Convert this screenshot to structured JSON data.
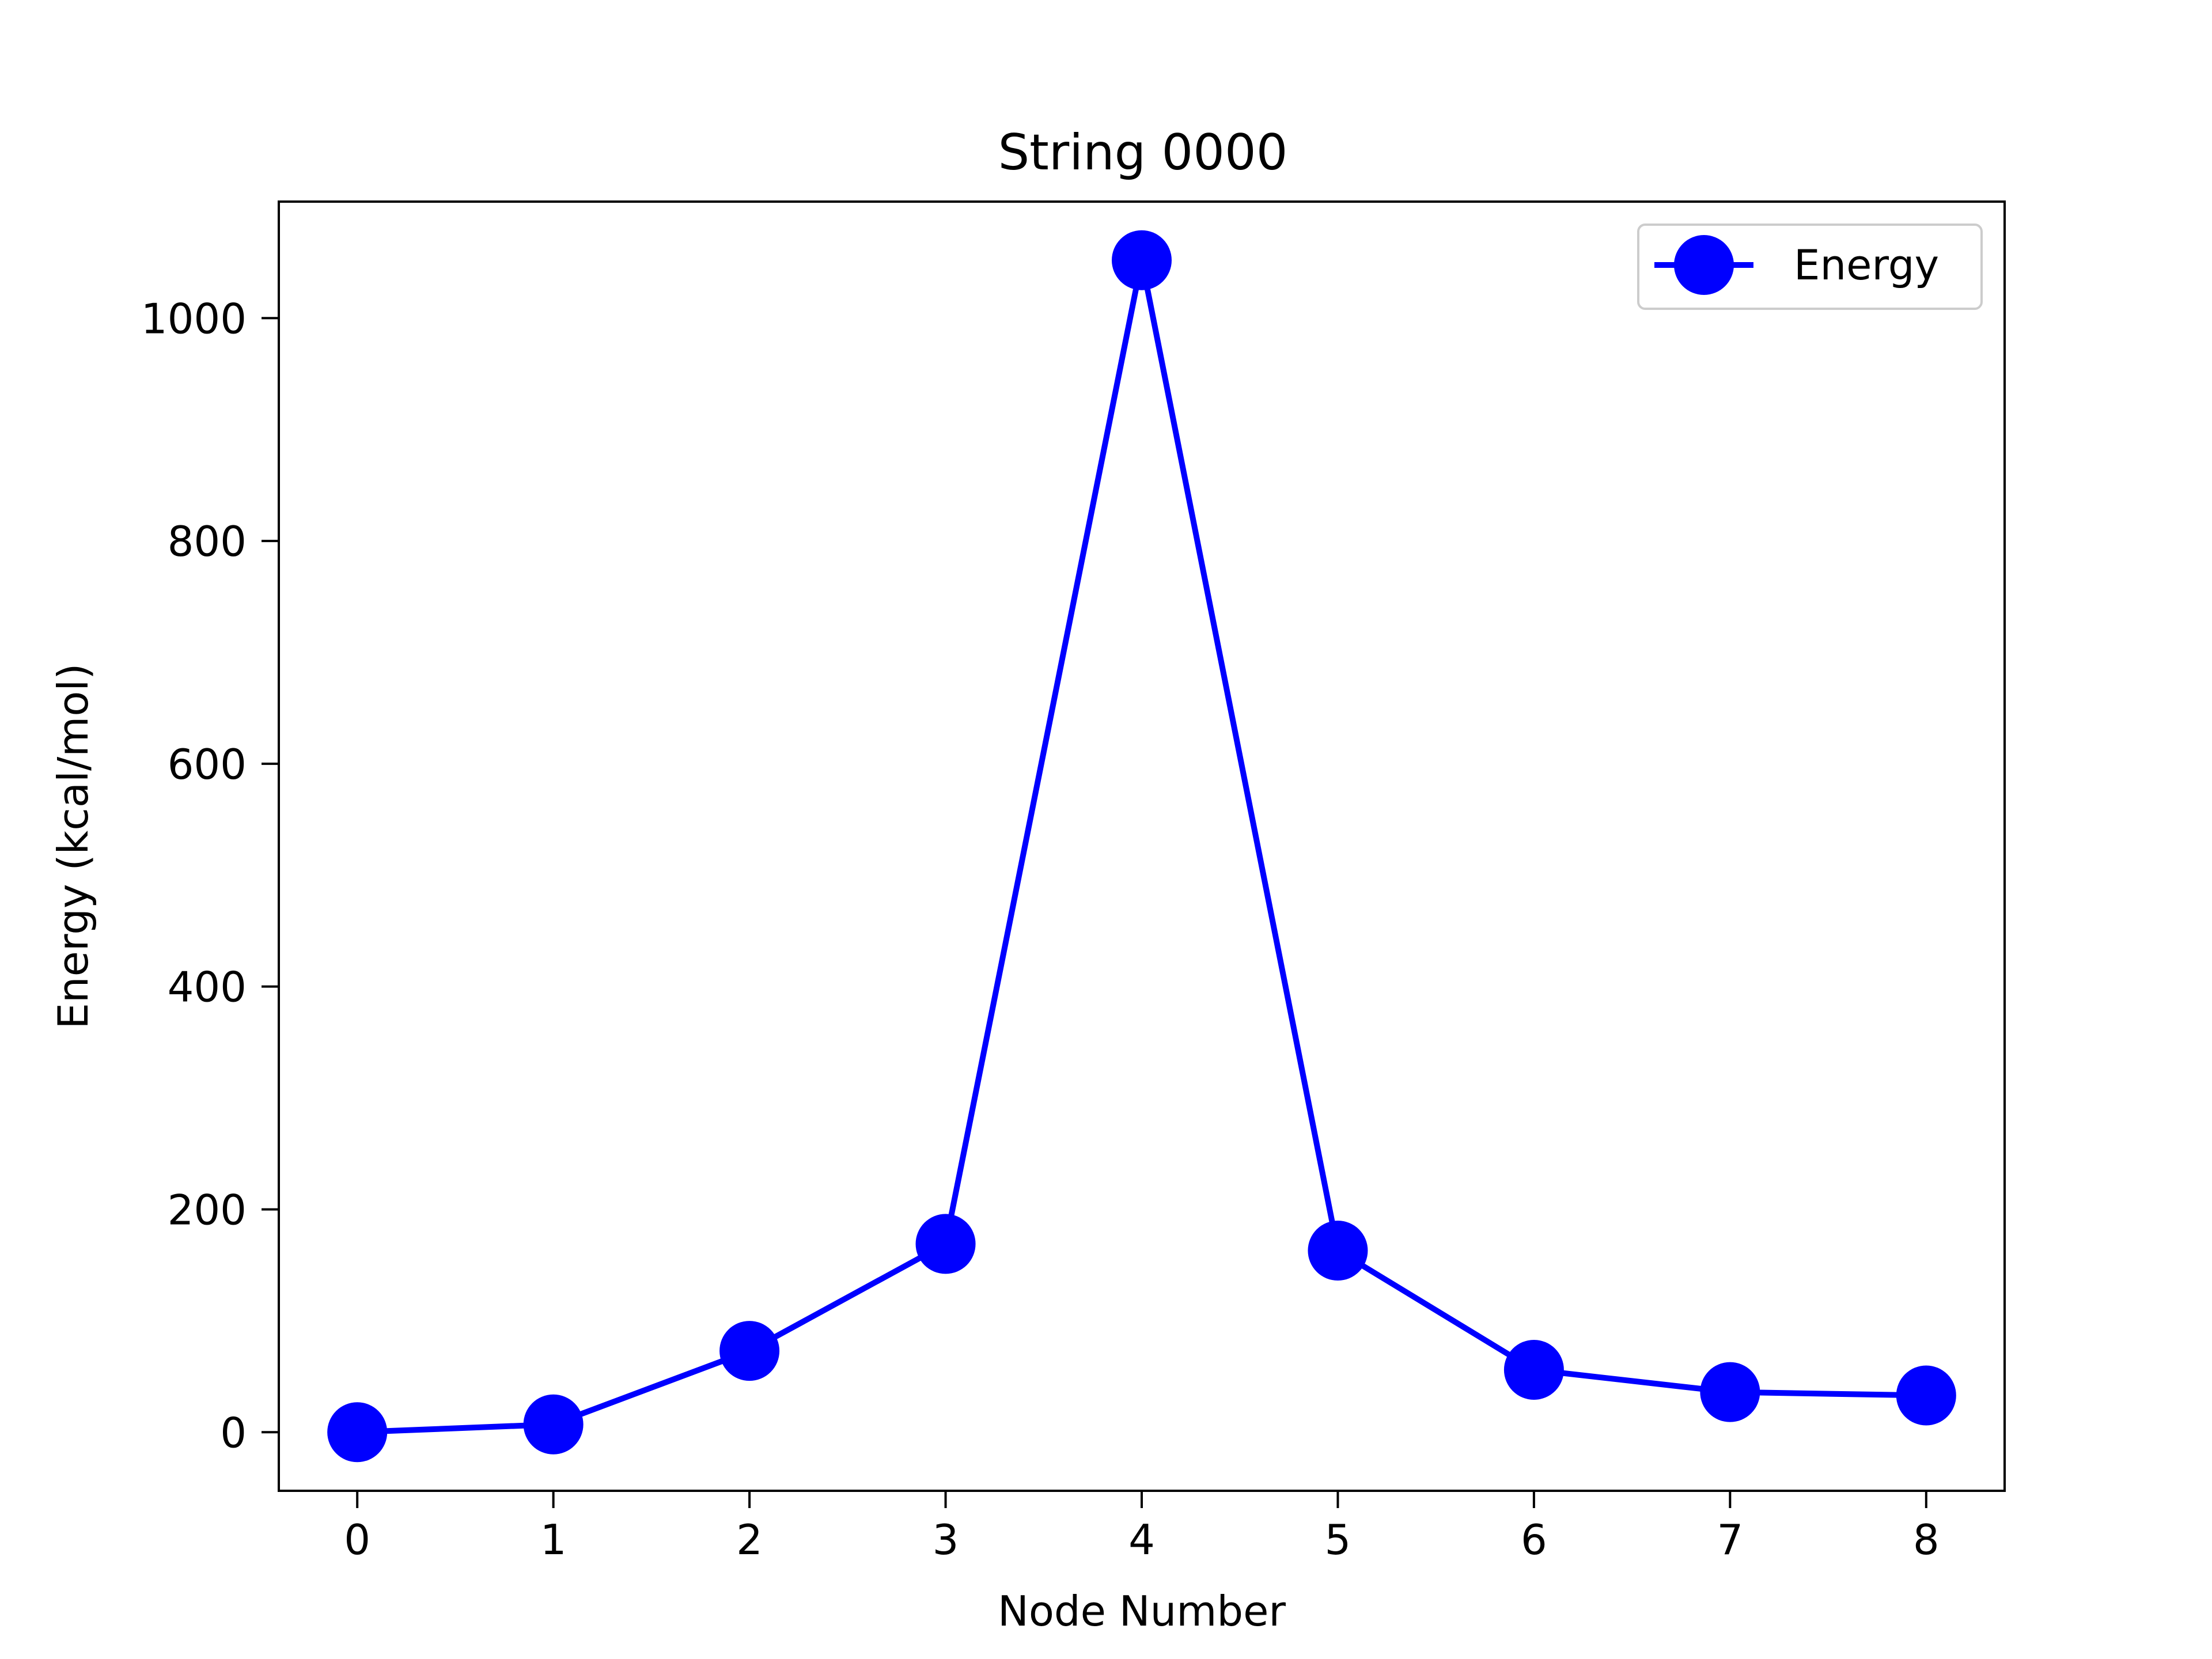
{
  "chart_data": {
    "type": "line",
    "title": "String 0000",
    "xlabel": "Node Number",
    "ylabel": "Energy (kcal/mol)",
    "x": [
      0,
      1,
      2,
      3,
      4,
      5,
      6,
      7,
      8
    ],
    "series": [
      {
        "name": "Energy",
        "color": "#0000ff",
        "marker": "circle",
        "values": [
          0,
          7,
          73,
          169,
          1052,
          163,
          56,
          36,
          33
        ]
      }
    ],
    "xticks": [
      "0",
      "1",
      "2",
      "3",
      "4",
      "5",
      "6",
      "7",
      "8"
    ],
    "yticks": [
      "0",
      "200",
      "400",
      "600",
      "800",
      "1000"
    ],
    "xlim": [
      -0.4,
      8.4
    ],
    "ylim": [
      -52.6,
      1104.6
    ],
    "grid": false,
    "legend": "top-right"
  }
}
